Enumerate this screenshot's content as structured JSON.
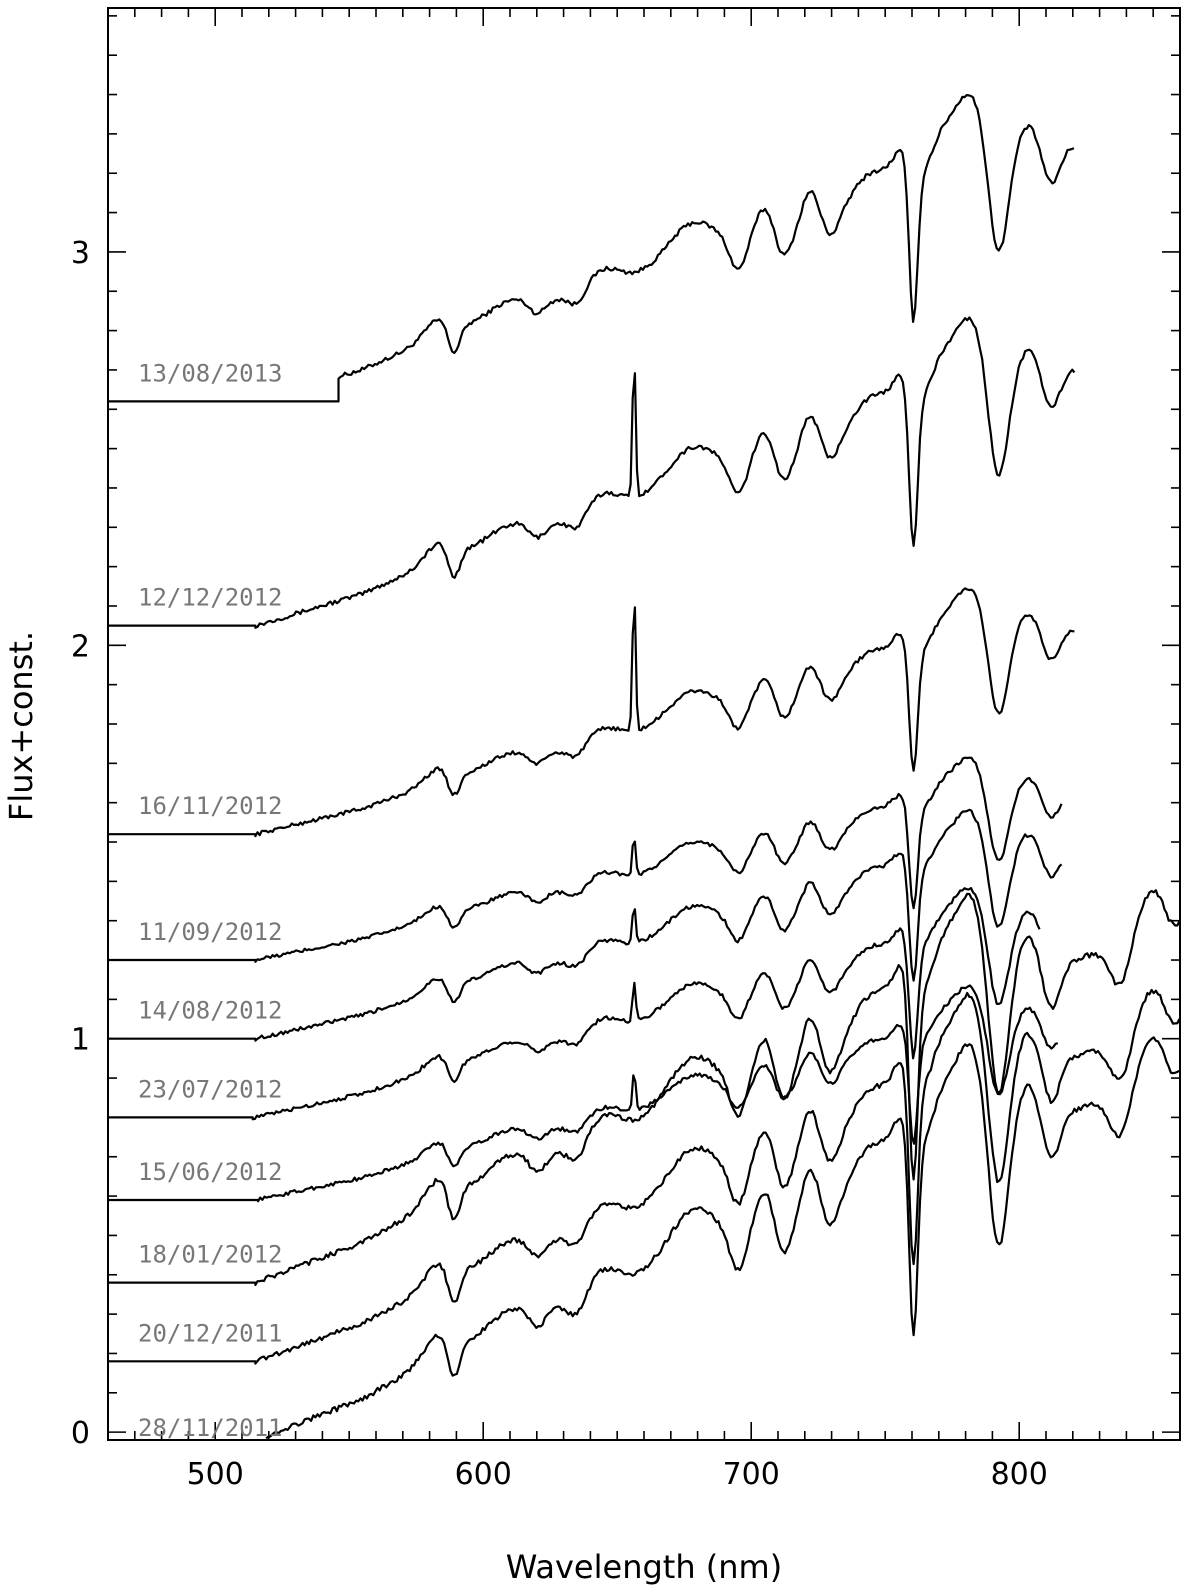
{
  "chart_data": {
    "type": "line",
    "title": "",
    "xlabel": "Wavelength (nm)",
    "ylabel": "Flux+const.",
    "xlim": [
      460,
      860
    ],
    "ylim": [
      -0.02,
      3.62
    ],
    "x_ticks": [
      500,
      600,
      700,
      800
    ],
    "y_ticks": [
      0,
      1,
      2,
      3
    ],
    "x_tick_labels": [
      "500",
      "600",
      "700",
      "800"
    ],
    "y_tick_labels": [
      "0",
      "1",
      "2",
      "3"
    ],
    "grid": false,
    "colors": {
      "line": "#000000",
      "label": "#777777"
    },
    "series": [
      {
        "name": "13/08/2013",
        "offset": 2.62,
        "x_start": 460,
        "flat_end": 546,
        "x_end": 821,
        "level_at_end": 3.27
      },
      {
        "name": "12/12/2012",
        "offset": 2.05,
        "x_start": 460,
        "flat_end": 515,
        "x_end": 821,
        "level_at_end": 2.7
      },
      {
        "name": "16/11/2012",
        "offset": 1.52,
        "x_start": 460,
        "flat_end": 515,
        "x_end": 821,
        "level_at_end": 2.04
      },
      {
        "name": "11/09/2012",
        "offset": 1.2,
        "x_start": 460,
        "flat_end": 515,
        "x_end": 816,
        "level_at_end": 1.6
      },
      {
        "name": "14/08/2012",
        "offset": 1.0,
        "x_start": 460,
        "flat_end": 515,
        "x_end": 816,
        "level_at_end": 1.45
      },
      {
        "name": "23/07/2012",
        "offset": 0.8,
        "x_start": 460,
        "flat_end": 514,
        "x_end": 808,
        "level_at_end": 1.27
      },
      {
        "name": "15/06/2012",
        "offset": 0.59,
        "x_start": 460,
        "flat_end": 516,
        "x_end": 815,
        "level_at_end": 1.0
      },
      {
        "name": "18/01/2012",
        "offset": 0.38,
        "x_start": 460,
        "flat_end": 515,
        "x_end": 860,
        "level_at_end": 1.3
      },
      {
        "name": "20/12/2011",
        "offset": 0.18,
        "x_start": 460,
        "flat_end": 515,
        "x_end": 860,
        "level_at_end": 1.05
      },
      {
        "name": "28/11/2011",
        "offset": -0.02,
        "x_start": 519,
        "flat_end": 519,
        "x_end": 860,
        "level_at_end": 0.92
      }
    ],
    "features_nm": {
      "emission_656": true,
      "absorption_589": true,
      "absorption_760": true,
      "band_peaks": [
        583,
        610,
        645,
        678,
        705,
        722,
        745,
        781,
        803,
        850
      ]
    }
  }
}
